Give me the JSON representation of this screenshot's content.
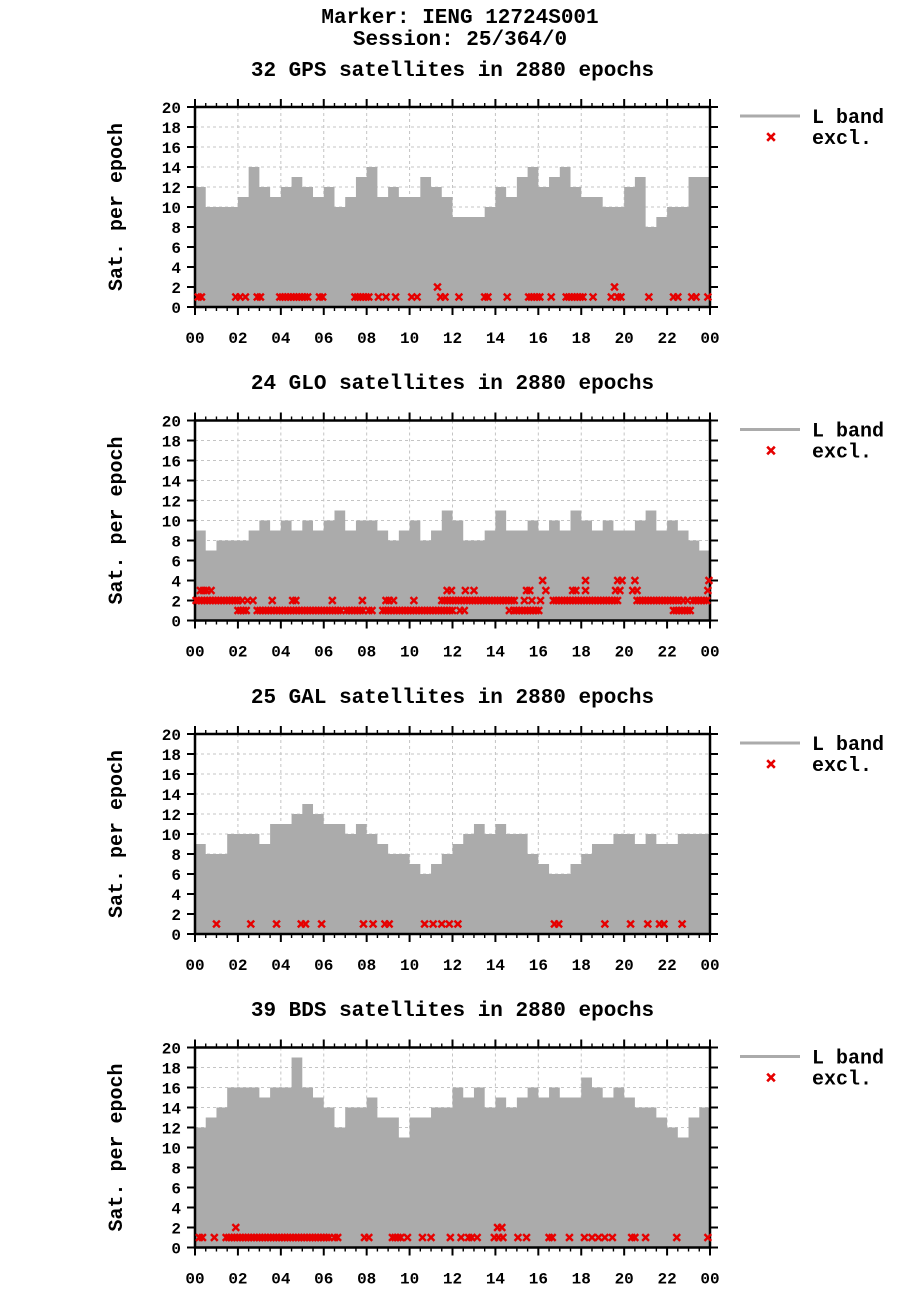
{
  "header": {
    "line1": "Marker: IENG 12724S001",
    "line2": "Session: 25/364/0"
  },
  "legend": {
    "line_label": "L band",
    "marker_label": "excl."
  },
  "colors": {
    "area": "#ababab",
    "excl": "#e60000",
    "grid": "#c4c4c4",
    "axis": "#000000"
  },
  "axes": {
    "ylabel": "Sat. per epoch",
    "ylim": [
      0,
      20
    ],
    "ytick_step": 2,
    "xlim_hours": [
      0,
      24
    ],
    "xtick_labels": [
      "00",
      "02",
      "04",
      "06",
      "08",
      "10",
      "12",
      "14",
      "16",
      "18",
      "20",
      "22",
      "00"
    ],
    "grid": "dashed every 2 units / 2 hours, ticks outward"
  },
  "chart_data": [
    {
      "type": "area",
      "title": "32 GPS satellites in 2880 epochs",
      "series_name": "L band",
      "step_hours": 0.5,
      "values": [
        12,
        10,
        10,
        10,
        11,
        14,
        12,
        11,
        12,
        13,
        12,
        11,
        12,
        10,
        11,
        13,
        14,
        11,
        12,
        11,
        11,
        13,
        12,
        11,
        9,
        9,
        9,
        10,
        12,
        11,
        13,
        14,
        12,
        13,
        14,
        12,
        11,
        11,
        10,
        10,
        12,
        13,
        8,
        9,
        10,
        10,
        13,
        13
      ],
      "excl_points": [
        [
          0.15,
          1
        ],
        [
          0.3,
          1
        ],
        [
          1.9,
          1
        ],
        [
          2.1,
          1
        ],
        [
          2.35,
          1
        ],
        [
          2.9,
          1
        ],
        [
          3.05,
          1
        ],
        [
          5.8,
          1
        ],
        [
          5.95,
          1
        ],
        [
          8.55,
          1
        ],
        [
          8.9,
          1
        ],
        [
          9.35,
          1
        ],
        [
          10.1,
          1
        ],
        [
          10.35,
          1
        ],
        [
          11.3,
          2
        ],
        [
          11.45,
          1
        ],
        [
          11.65,
          1
        ],
        [
          12.3,
          1
        ],
        [
          13.5,
          1
        ],
        [
          13.65,
          1
        ],
        [
          14.55,
          1
        ],
        [
          16.6,
          1
        ],
        [
          18.55,
          1
        ],
        [
          19.4,
          1
        ],
        [
          19.55,
          2
        ],
        [
          19.7,
          1
        ],
        [
          19.85,
          1
        ],
        [
          21.15,
          1
        ],
        [
          22.3,
          1
        ],
        [
          22.5,
          1
        ],
        [
          23.15,
          1
        ],
        [
          23.35,
          1
        ],
        [
          23.9,
          1
        ]
      ],
      "excl_segments": [
        {
          "y": 1,
          "from": 3.95,
          "to": 5.25
        },
        {
          "y": 1,
          "from": 7.45,
          "to": 8.2
        },
        {
          "y": 1,
          "from": 15.55,
          "to": 16.15
        },
        {
          "y": 1,
          "from": 17.3,
          "to": 18.1
        }
      ]
    },
    {
      "type": "area",
      "title": "24 GLO satellites in 2880 epochs",
      "series_name": "L band",
      "step_hours": 0.5,
      "values": [
        9,
        7,
        8,
        8,
        8,
        9,
        10,
        9,
        10,
        9,
        10,
        9,
        10,
        11,
        9,
        10,
        10,
        9,
        8,
        9,
        10,
        8,
        9,
        11,
        10,
        8,
        8,
        9,
        11,
        9,
        9,
        10,
        9,
        10,
        9,
        11,
        10,
        9,
        10,
        9,
        9,
        10,
        11,
        9,
        10,
        9,
        8,
        7
      ],
      "excl_points": [
        [
          0.25,
          3
        ],
        [
          0.4,
          3
        ],
        [
          0.55,
          3
        ],
        [
          0.75,
          3
        ],
        [
          11.75,
          3
        ],
        [
          11.95,
          3
        ],
        [
          12.6,
          3
        ],
        [
          13.0,
          3
        ],
        [
          15.45,
          3
        ],
        [
          15.6,
          3
        ],
        [
          16.35,
          3
        ],
        [
          17.6,
          3
        ],
        [
          17.75,
          3
        ],
        [
          18.2,
          3
        ],
        [
          19.6,
          3
        ],
        [
          19.8,
          3
        ],
        [
          20.4,
          3
        ],
        [
          20.6,
          3
        ],
        [
          23.9,
          3
        ],
        [
          16.2,
          4
        ],
        [
          18.2,
          4
        ],
        [
          19.7,
          4
        ],
        [
          19.9,
          4
        ],
        [
          20.5,
          4
        ],
        [
          23.95,
          4
        ],
        [
          2.2,
          2
        ],
        [
          2.45,
          2
        ],
        [
          2.7,
          2
        ],
        [
          3.6,
          2
        ],
        [
          4.55,
          2
        ],
        [
          4.7,
          2
        ],
        [
          6.4,
          2
        ],
        [
          7.8,
          2
        ],
        [
          8.9,
          2
        ],
        [
          9.05,
          2
        ],
        [
          9.25,
          2
        ],
        [
          10.2,
          2
        ],
        [
          15.35,
          2
        ],
        [
          15.7,
          2
        ],
        [
          16.1,
          2
        ],
        [
          22.75,
          2
        ],
        [
          22.95,
          2
        ],
        [
          8.1,
          1
        ],
        [
          8.25,
          1
        ],
        [
          12.35,
          1
        ],
        [
          12.55,
          1
        ],
        [
          14.65,
          1
        ]
      ],
      "excl_segments": [
        {
          "y": 2,
          "from": 0.05,
          "to": 2.0
        },
        {
          "y": 1,
          "from": 2.0,
          "to": 2.5
        },
        {
          "y": 1,
          "from": 2.9,
          "to": 6.85
        },
        {
          "y": 1,
          "from": 7.05,
          "to": 7.9
        },
        {
          "y": 1,
          "from": 8.75,
          "to": 12.1
        },
        {
          "y": 2,
          "from": 11.5,
          "to": 15.0
        },
        {
          "y": 1,
          "from": 14.85,
          "to": 16.1
        },
        {
          "y": 2,
          "from": 16.7,
          "to": 19.8
        },
        {
          "y": 2,
          "from": 20.6,
          "to": 22.6
        },
        {
          "y": 1,
          "from": 22.3,
          "to": 23.2
        },
        {
          "y": 2,
          "from": 23.2,
          "to": 23.95
        }
      ]
    },
    {
      "type": "area",
      "title": "25 GAL satellites in 2880 epochs",
      "series_name": "L band",
      "step_hours": 0.5,
      "values": [
        9,
        8,
        8,
        10,
        10,
        10,
        9,
        11,
        11,
        12,
        13,
        12,
        11,
        11,
        10,
        11,
        10,
        9,
        8,
        8,
        7,
        6,
        7,
        8,
        9,
        10,
        11,
        10,
        11,
        10,
        10,
        8,
        7,
        6,
        6,
        7,
        8,
        9,
        9,
        10,
        10,
        9,
        10,
        9,
        9,
        10,
        10,
        10
      ],
      "excl_points": [
        [
          1.0,
          1
        ],
        [
          2.6,
          1
        ],
        [
          3.8,
          1
        ],
        [
          4.95,
          1
        ],
        [
          5.15,
          1
        ],
        [
          5.9,
          1
        ],
        [
          7.85,
          1
        ],
        [
          8.3,
          1
        ],
        [
          8.85,
          1
        ],
        [
          9.05,
          1
        ],
        [
          10.7,
          1
        ],
        [
          11.1,
          1
        ],
        [
          11.5,
          1
        ],
        [
          11.85,
          1
        ],
        [
          12.25,
          1
        ],
        [
          16.75,
          1
        ],
        [
          16.95,
          1
        ],
        [
          19.1,
          1
        ],
        [
          20.3,
          1
        ],
        [
          21.1,
          1
        ],
        [
          21.65,
          1
        ],
        [
          21.85,
          1
        ],
        [
          22.7,
          1
        ]
      ],
      "excl_segments": []
    },
    {
      "type": "area",
      "title": "39 BDS satellites in 2880 epochs",
      "series_name": "L band",
      "step_hours": 0.5,
      "values": [
        12,
        13,
        14,
        16,
        16,
        16,
        15,
        16,
        16,
        19,
        16,
        15,
        14,
        12,
        14,
        14,
        15,
        13,
        13,
        11,
        13,
        13,
        14,
        14,
        16,
        15,
        16,
        14,
        15,
        14,
        15,
        16,
        15,
        16,
        15,
        15,
        17,
        16,
        15,
        16,
        15,
        14,
        14,
        13,
        12,
        11,
        13,
        14
      ],
      "excl_points": [
        [
          0.2,
          1
        ],
        [
          0.35,
          1
        ],
        [
          0.9,
          1
        ],
        [
          1.9,
          2
        ],
        [
          6.5,
          1
        ],
        [
          6.65,
          1
        ],
        [
          7.9,
          1
        ],
        [
          8.1,
          1
        ],
        [
          9.9,
          1
        ],
        [
          10.6,
          1
        ],
        [
          11.0,
          1
        ],
        [
          11.9,
          1
        ],
        [
          12.4,
          1
        ],
        [
          12.75,
          1
        ],
        [
          12.9,
          1
        ],
        [
          13.15,
          1
        ],
        [
          13.95,
          1
        ],
        [
          14.1,
          2
        ],
        [
          14.3,
          2
        ],
        [
          14.15,
          1
        ],
        [
          14.35,
          1
        ],
        [
          15.05,
          1
        ],
        [
          15.45,
          1
        ],
        [
          16.5,
          1
        ],
        [
          16.65,
          1
        ],
        [
          17.45,
          1
        ],
        [
          18.15,
          1
        ],
        [
          18.5,
          1
        ],
        [
          18.8,
          1
        ],
        [
          19.1,
          1
        ],
        [
          19.45,
          1
        ],
        [
          20.35,
          1
        ],
        [
          20.5,
          1
        ],
        [
          21.0,
          1
        ],
        [
          22.45,
          1
        ],
        [
          23.9,
          1
        ]
      ],
      "excl_segments": [
        {
          "y": 1,
          "from": 1.45,
          "to": 6.35
        },
        {
          "y": 1,
          "from": 9.2,
          "to": 9.7
        }
      ]
    }
  ]
}
